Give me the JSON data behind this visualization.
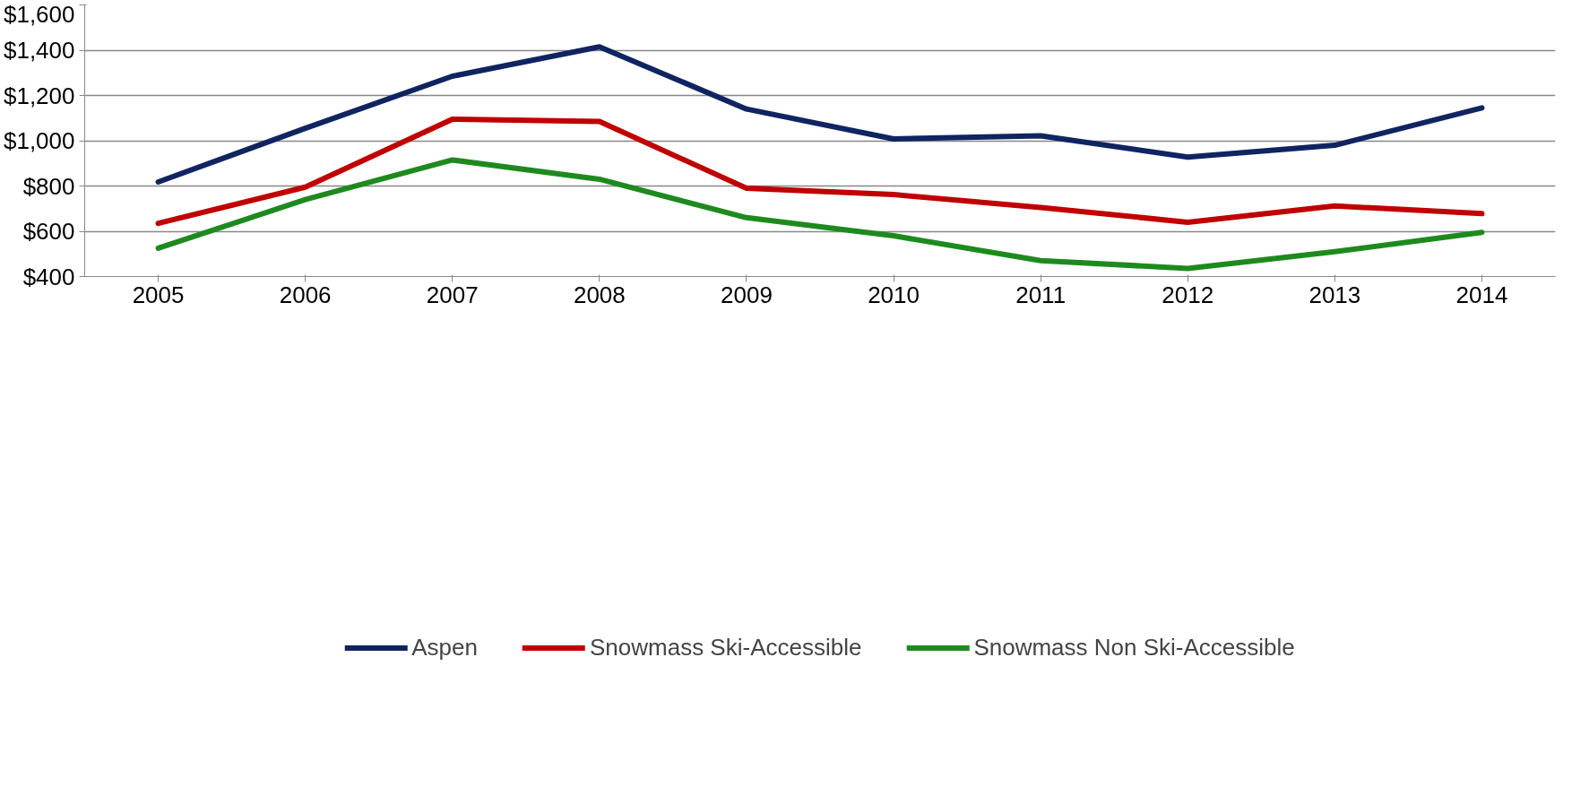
{
  "chart_data": {
    "type": "line",
    "categories": [
      "2005",
      "2006",
      "2007",
      "2008",
      "2009",
      "2010",
      "2011",
      "2012",
      "2013",
      "2014"
    ],
    "series": [
      {
        "name": "Aspen",
        "color": "#0f2460",
        "values": [
          818,
          1055,
          1285,
          1415,
          1140,
          1008,
          1022,
          928,
          980,
          1145
        ]
      },
      {
        "name": "Snowmass Ski-Accessible",
        "color": "#c00000",
        "values": [
          635,
          795,
          1095,
          1085,
          790,
          762,
          705,
          640,
          712,
          678
        ]
      },
      {
        "name": "Snowmass Non Ski-Accessible",
        "color": "#1e8a1e",
        "values": [
          525,
          740,
          915,
          830,
          660,
          580,
          470,
          436,
          510,
          595
        ]
      }
    ],
    "ylim": [
      400,
      1600
    ],
    "yticks": [
      {
        "value": 400,
        "label": "$400"
      },
      {
        "value": 600,
        "label": "$600"
      },
      {
        "value": 800,
        "label": "$800"
      },
      {
        "value": 1000,
        "label": "$1,000"
      },
      {
        "value": 1200,
        "label": "$1,200"
      },
      {
        "value": 1400,
        "label": "$1,400"
      },
      {
        "value": 1600,
        "label": "$1,600"
      }
    ],
    "grid": "y",
    "legend": "bottom",
    "marker": "none",
    "line_style": "solid"
  }
}
